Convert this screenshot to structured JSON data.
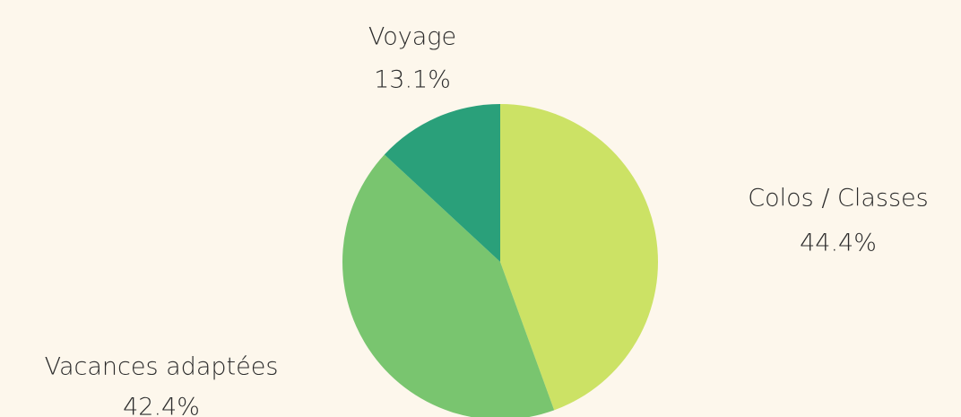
{
  "chart_data": {
    "type": "pie",
    "categories": [
      "Colos / Classes",
      "Vacances adaptées",
      "Voyage"
    ],
    "values": [
      44.4,
      42.4,
      13.1
    ],
    "value_labels": [
      "44.4%",
      "42.4%",
      "13.1%"
    ],
    "colors": [
      "#cce265",
      "#79c56f",
      "#2aa07a"
    ]
  }
}
